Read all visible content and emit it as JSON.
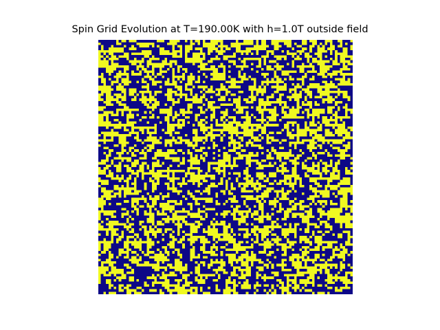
{
  "chart_data": {
    "type": "heatmap",
    "title": "Spin Grid Evolution at T=190.00K with h=1.0T outside field",
    "xlabel": "",
    "ylabel": "",
    "axes_visible": false,
    "grid": false,
    "legend": "none",
    "rows": 100,
    "cols": 100,
    "spin_values": [
      -1,
      1
    ],
    "approx_fraction_spin_up": 0.55,
    "colormap": {
      "spin_down": "#0d0887",
      "spin_up": "#f0f921"
    }
  }
}
